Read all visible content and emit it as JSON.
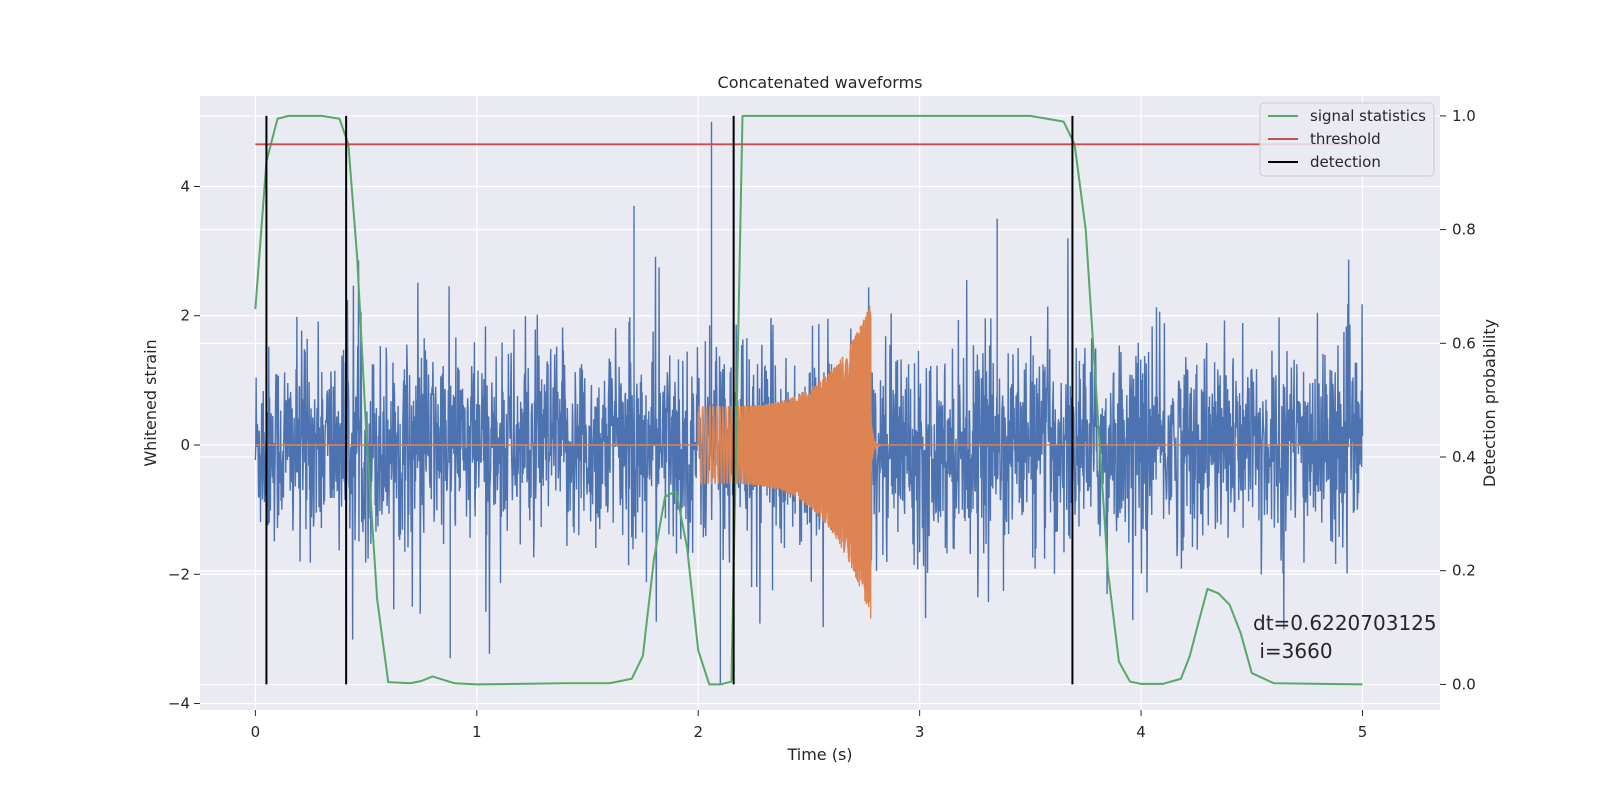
{
  "chart_data": {
    "type": "line",
    "title": "Concatenated waveforms",
    "xlabel": "Time (s)",
    "ylabel": "Whitened strain",
    "y2label": "Detection probability",
    "xlim": [
      -0.25,
      5.35
    ],
    "ylim": [
      -4.1,
      5.4
    ],
    "y2lim": [
      -0.045,
      1.035
    ],
    "xticks": [
      0,
      1,
      2,
      3,
      4,
      5
    ],
    "yticks": [
      -4,
      -2,
      0,
      2,
      4
    ],
    "y2ticks": [
      0.0,
      0.2,
      0.4,
      0.6,
      0.8,
      1.0
    ],
    "xtick_labels": [
      "0",
      "1",
      "2",
      "3",
      "4",
      "5"
    ],
    "ytick_labels": [
      "−4",
      "−2",
      "0",
      "2",
      "4"
    ],
    "y2tick_labels": [
      "0.0",
      "0.2",
      "0.4",
      "0.6",
      "0.8",
      "1.0"
    ],
    "grid": true,
    "legend_position": "top-right",
    "colors": {
      "strain": "#4c72b0",
      "injection": "#dd8452",
      "statistic": "#55a868",
      "threshold": "#c44e52",
      "detection": "#000000",
      "background": "#eaeaf2",
      "grid": "#ffffff"
    },
    "series": [
      {
        "name": "",
        "role": "whitened-strain-noise",
        "axis": "left",
        "x_range": [
          0,
          5
        ],
        "typical_envelope": [
          -1.5,
          1.5
        ],
        "max": 5.0,
        "min": -3.7
      },
      {
        "name": "",
        "role": "injected-chirp",
        "axis": "left",
        "chirp_start": 2.0,
        "chirp_peak": 2.78,
        "chirp_end": 2.8,
        "amp_start": 0.6,
        "amp_peak_pos": 2.2,
        "amp_peak_neg": -2.7
      },
      {
        "name": "signal statistics",
        "axis": "right",
        "x": [
          0,
          0.05,
          0.1,
          0.15,
          0.2,
          0.3,
          0.38,
          0.42,
          0.46,
          0.5,
          0.55,
          0.6,
          0.7,
          0.75,
          0.8,
          0.9,
          1.0,
          1.4,
          1.6,
          1.7,
          1.75,
          1.8,
          1.85,
          1.9,
          1.95,
          2.0,
          2.05,
          2.1,
          2.15,
          2.2,
          2.3,
          3.5,
          3.65,
          3.7,
          3.75,
          3.8,
          3.85,
          3.9,
          3.95,
          4.0,
          4.1,
          4.18,
          4.22,
          4.26,
          4.3,
          4.35,
          4.4,
          4.45,
          4.5,
          4.6,
          5.0
        ],
        "y": [
          0.66,
          0.92,
          0.995,
          1.0,
          1.0,
          1.0,
          0.995,
          0.95,
          0.75,
          0.45,
          0.15,
          0.004,
          0.002,
          0.006,
          0.014,
          0.002,
          0.0,
          0.002,
          0.002,
          0.01,
          0.05,
          0.22,
          0.33,
          0.34,
          0.24,
          0.06,
          0.0,
          0.0,
          0.005,
          1.0,
          1.0,
          1.0,
          0.99,
          0.95,
          0.8,
          0.5,
          0.2,
          0.04,
          0.005,
          0.001,
          0.001,
          0.01,
          0.05,
          0.11,
          0.168,
          0.16,
          0.14,
          0.09,
          0.02,
          0.002,
          0.0
        ]
      },
      {
        "name": "threshold",
        "axis": "right",
        "value": 0.95,
        "x": [
          0,
          5
        ]
      },
      {
        "name": "detection",
        "axis": "right",
        "x": [
          0.05,
          0.41,
          2.16,
          3.69
        ],
        "ymin": 0.0,
        "ymax": 1.0
      }
    ],
    "annotation": {
      "line1": "dt=0.6220703125",
      "line2": " i=3660",
      "x": 4.5,
      "y": 0.108
    }
  }
}
